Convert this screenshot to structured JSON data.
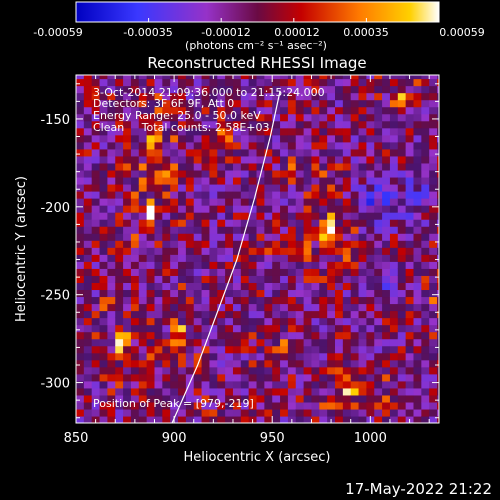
{
  "chart_data": {
    "type": "heatmap",
    "title": "Reconstructed RHESSI Image",
    "xlabel": "Heliocentric X (arcsec)",
    "ylabel": "Heliocentric Y (arcsec)",
    "xlim": [
      850,
      1035
    ],
    "ylim": [
      -323,
      -125
    ],
    "x_ticks": [
      850,
      900,
      950,
      1000
    ],
    "y_ticks": [
      -150,
      -200,
      -250,
      -300
    ],
    "colorbar": {
      "ticks": [
        "-0.00059",
        "-0.00035",
        "-0.00012",
        "0.00012",
        "0.00035",
        "0.00059"
      ],
      "label": "(photons cm⁻² s⁻¹ asec⁻²)",
      "range": [
        -0.00059,
        0.00059
      ]
    },
    "annotations": [
      "3-Oct-2014 21:09:36.000 to 21:15:24.000",
      "Detectors: 3F 6F 9F, Att 0",
      "Energy Range: 25.0 - 50.0 keV",
      "Clean     Total counts: 2.58E+03"
    ],
    "peak_label": "Position of Peak = [979,-219]",
    "peak": [
      979,
      -219
    ],
    "limb_curve": [
      [
        899,
        -323
      ],
      [
        912,
        -290
      ],
      [
        922,
        -260
      ],
      [
        932,
        -230
      ],
      [
        941,
        -195
      ],
      [
        949,
        -160
      ],
      [
        954,
        -134
      ]
    ],
    "sources": [
      {
        "x": 889,
        "y": -163,
        "sx": 8,
        "sy": 13,
        "amp": 0.00055
      },
      {
        "x": 889,
        "y": -203,
        "sx": 7,
        "sy": 13,
        "amp": 0.0005
      },
      {
        "x": 873,
        "y": -276,
        "sx": 8,
        "sy": 14,
        "amp": 0.00045
      },
      {
        "x": 903,
        "y": -272,
        "sx": 7,
        "sy": 13,
        "amp": 0.0004
      },
      {
        "x": 979,
        "y": -214,
        "sx": 8,
        "sy": 18,
        "amp": 0.00059
      },
      {
        "x": 991,
        "y": -303,
        "sx": 11,
        "sy": 8,
        "amp": 0.00058
      },
      {
        "x": 1014,
        "y": -137,
        "sx": 6,
        "sy": 9,
        "amp": 0.0004
      },
      {
        "x": 925,
        "y": -161,
        "sx": 7,
        "sy": 9,
        "amp": 0.00025
      },
      {
        "x": 919,
        "y": -318,
        "sx": 8,
        "sy": 6,
        "amp": 0.0003
      },
      {
        "x": 953,
        "y": -278,
        "sx": 8,
        "sy": 8,
        "amp": 0.0002
      },
      {
        "x": 958,
        "y": -176,
        "sx": 6,
        "sy": 6,
        "amp": 0.00025
      },
      {
        "x": 1032,
        "y": -252,
        "sx": 4,
        "sy": 10,
        "amp": 0.00022
      },
      {
        "x": 947,
        "y": -223,
        "sx": 6,
        "sy": 8,
        "amp": 0.00015
      }
    ],
    "negative_regions": [
      {
        "x": 1000,
        "y": -198,
        "sx": 9,
        "sy": 9,
        "amp": -0.00025
      },
      {
        "x": 1022,
        "y": -196,
        "sx": 6,
        "sy": 9,
        "amp": -0.0002
      },
      {
        "x": 1002,
        "y": -245,
        "sx": 8,
        "sy": 7,
        "amp": -0.00018
      }
    ]
  },
  "footer": {
    "date": "17-May-2022 21:22"
  }
}
